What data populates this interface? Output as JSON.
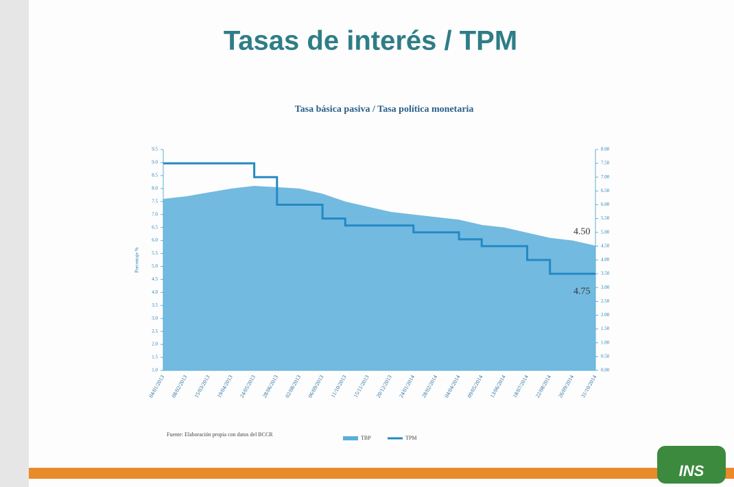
{
  "slide_title": "Tasas de interés / TPM",
  "logo": "INS",
  "source": "Fuente: Elaboración propia con datos del BCCR",
  "chart_data": {
    "type": "area-step",
    "title": "Tasa básica pasiva / Tasa política monetaria",
    "ylabel": "Porcentaje %",
    "categories": [
      "04/01/2013",
      "08/02/2013",
      "15/03/2013",
      "19/04/2013",
      "24/05/2013",
      "28/06/2013",
      "02/08/2013",
      "06/09/2013",
      "11/10/2013",
      "15/11/2013",
      "20/12/2013",
      "24/01/2014",
      "28/02/2014",
      "04/04/2014",
      "09/05/2014",
      "13/06/2014",
      "18/07/2014",
      "22/08/2014",
      "26/09/2014",
      "31/10/2014"
    ],
    "series": [
      {
        "name": "TBP",
        "color": "#5aaedb",
        "kind": "area",
        "values": [
          7.6,
          7.7,
          7.85,
          8.0,
          8.1,
          8.05,
          8.0,
          7.8,
          7.5,
          7.3,
          7.1,
          7.0,
          6.9,
          6.8,
          6.6,
          6.5,
          6.3,
          6.1,
          6.0,
          5.8
        ]
      },
      {
        "name": "TPM",
        "color": "#2389c4",
        "kind": "step",
        "axis": "y2",
        "values": [
          7.5,
          7.5,
          7.5,
          7.5,
          7.0,
          6.0,
          6.0,
          5.5,
          5.25,
          5.25,
          5.25,
          5.0,
          5.0,
          4.75,
          4.5,
          4.5,
          4.0,
          3.5,
          3.5,
          3.5
        ]
      }
    ],
    "annotations": [
      "4.50",
      "4.75"
    ],
    "ylim": [
      1.0,
      9.5
    ],
    "yticks": [
      {
        "value": 1.0,
        "label": "1.0"
      },
      {
        "value": 1.5,
        "label": "1.5"
      },
      {
        "value": 2.0,
        "label": "2.0"
      },
      {
        "value": 2.5,
        "label": "2.5"
      },
      {
        "value": 3.0,
        "label": "3.0"
      },
      {
        "value": 3.5,
        "label": "3.5"
      },
      {
        "value": 4.0,
        "label": "4.0"
      },
      {
        "value": 4.5,
        "label": "4.5"
      },
      {
        "value": 5.0,
        "label": "5.0"
      },
      {
        "value": 5.5,
        "label": "5.5"
      },
      {
        "value": 6.0,
        "label": "6.0"
      },
      {
        "value": 6.5,
        "label": "6.5"
      },
      {
        "value": 7.0,
        "label": "7.0"
      },
      {
        "value": 7.5,
        "label": "7.5"
      },
      {
        "value": 8.0,
        "label": "8.0"
      },
      {
        "value": 8.5,
        "label": "8.5"
      },
      {
        "value": 9.0,
        "label": "9.0"
      },
      {
        "value": 9.5,
        "label": "9.5"
      }
    ],
    "y2lim": [
      0,
      8
    ],
    "y2ticks": [
      {
        "value": 0,
        "label": "0.00"
      },
      {
        "value": 0.5,
        "label": "0.50"
      },
      {
        "value": 1,
        "label": "1.00"
      },
      {
        "value": 1.5,
        "label": "1.50"
      },
      {
        "value": 2,
        "label": "2.00"
      },
      {
        "value": 2.5,
        "label": "2.50"
      },
      {
        "value": 3,
        "label": "3.00"
      },
      {
        "value": 3.5,
        "label": "3.50"
      },
      {
        "value": 4,
        "label": "4.00"
      },
      {
        "value": 4.5,
        "label": "4.50"
      },
      {
        "value": 5,
        "label": "5.00"
      },
      {
        "value": 5.5,
        "label": "5.50"
      },
      {
        "value": 6,
        "label": "6.00"
      },
      {
        "value": 6.5,
        "label": "6.50"
      },
      {
        "value": 7,
        "label": "7.00"
      },
      {
        "value": 7.5,
        "label": "7.50"
      },
      {
        "value": 8,
        "label": "8.00"
      }
    ],
    "legend": "bottom"
  }
}
